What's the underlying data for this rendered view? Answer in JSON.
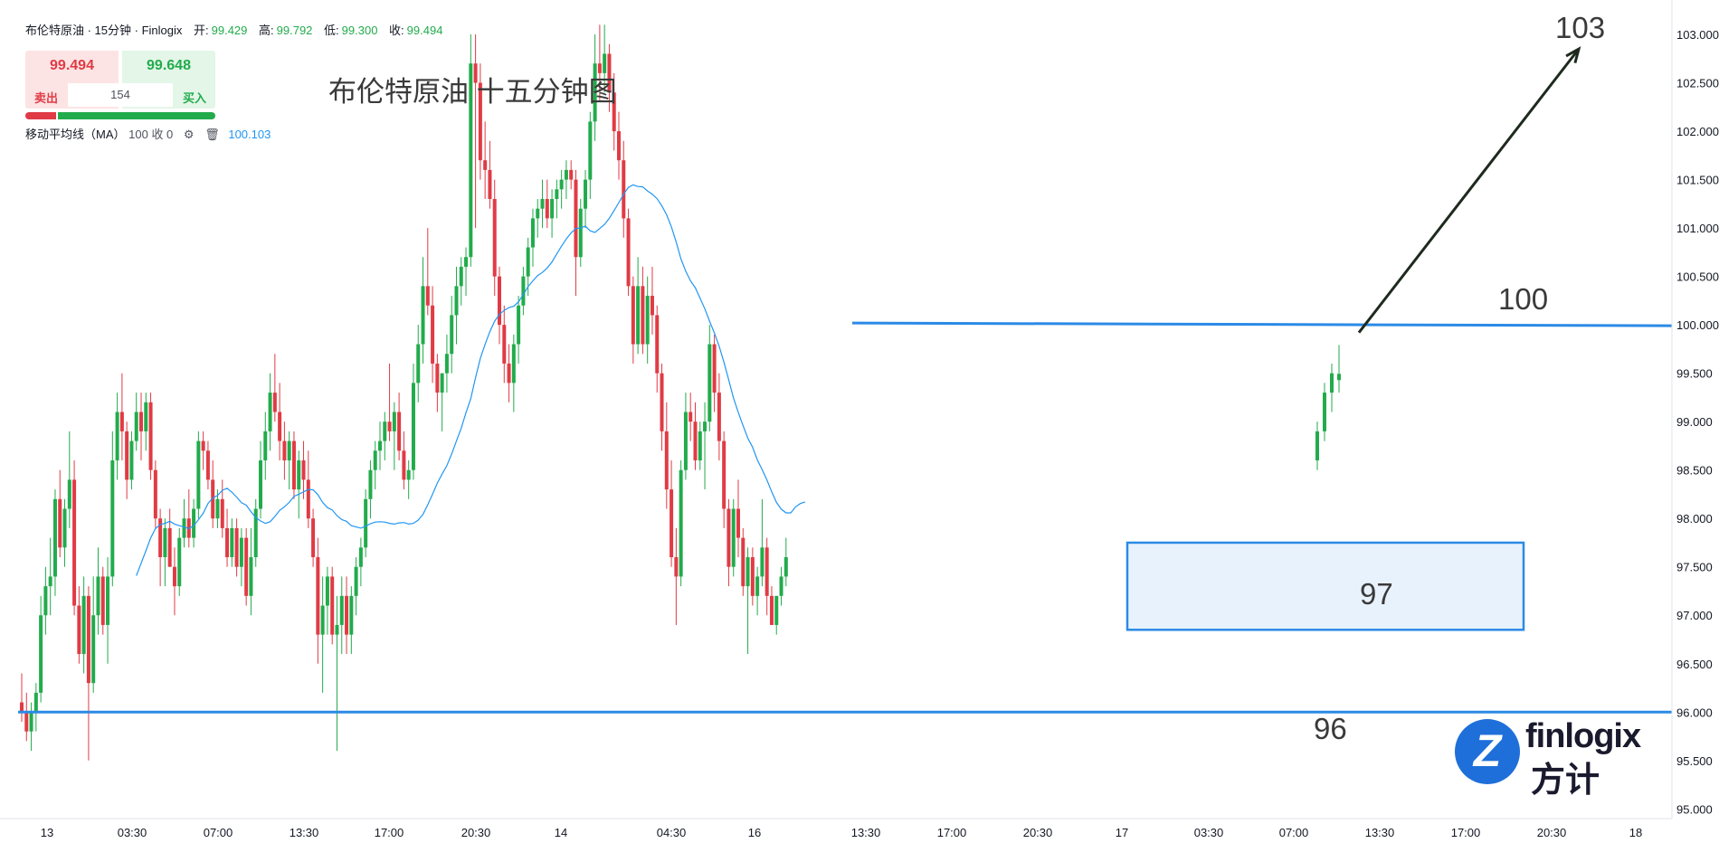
{
  "header": {
    "symbol_line": "布伦特原油 · 15分钟 · Finlogix",
    "open_label": "开:",
    "open_value": "99.429",
    "high_label": "高:",
    "high_value": "99.792",
    "low_label": "低:",
    "low_value": "99.300",
    "close_label": "收:",
    "close_value": "99.494"
  },
  "trade_panel": {
    "sell_price": "99.494",
    "buy_price": "99.648",
    "spread": "154",
    "sell_label": "卖出",
    "buy_label": "买入"
  },
  "indicator": {
    "label": "移动平均线（MA）",
    "params": "100 收 0",
    "value": "100.103",
    "settings_icon": "gear-icon",
    "delete_icon": "trash-icon"
  },
  "overlay_title": "布伦特原油 十五分钟图",
  "annotations": {
    "target_up": "103",
    "resistance": "100",
    "support_zone": "97",
    "support_low": "96"
  },
  "colors": {
    "up": "#22ab4c",
    "down": "#e03b45",
    "ma_line": "#2196f3",
    "level_line": "#2b8ae6",
    "zone_fill": "#e8f2fc",
    "zone_border": "#2b8ae6",
    "arrow": "#1e2a1e"
  },
  "logo": {
    "name_en": "finlogix",
    "name_cn": "方计",
    "icon": "finlogix-z-logo-icon"
  },
  "chart_data": {
    "type": "candlestick",
    "title": "布伦特原油 十五分钟图",
    "ylim": [
      94.9,
      103.15
    ],
    "y_ticks": [
      "103.000",
      "102.500",
      "102.000",
      "101.500",
      "101.000",
      "100.500",
      "100.000",
      "99.500",
      "99.000",
      "98.500",
      "98.000",
      "97.500",
      "97.000",
      "96.500",
      "96.000",
      "95.500",
      "95.000"
    ],
    "x_ticks": [
      "13",
      "03:30",
      "07:00",
      "13:30",
      "17:00",
      "20:30",
      "14",
      "04:30",
      "16",
      "13:30",
      "17:00",
      "20:30",
      "17",
      "03:30",
      "07:00",
      "13:30",
      "17:00",
      "20:30",
      "18"
    ],
    "horizontal_levels": [
      {
        "name": "resistance",
        "price": 100.0,
        "label": "100"
      },
      {
        "name": "support",
        "price": 96.0,
        "label": "96"
      }
    ],
    "support_zone": {
      "low": 96.85,
      "high": 97.75,
      "label": "97"
    },
    "target_arrow": {
      "from_price": 99.92,
      "to_price": 102.85,
      "label": "103"
    },
    "moving_average": {
      "period": 100,
      "last_value": 100.103
    },
    "ohlc_last": {
      "open": 99.429,
      "high": 99.792,
      "low": 99.3,
      "close": 99.494
    },
    "series": [
      {
        "name": "candles",
        "points": [
          [
            96.1,
            96.4,
            95.9,
            96.0
          ],
          [
            96.0,
            96.2,
            95.7,
            95.8
          ],
          [
            95.8,
            96.1,
            95.6,
            96.0
          ],
          [
            96.0,
            96.3,
            95.8,
            96.2
          ],
          [
            96.2,
            97.2,
            96.1,
            97.0
          ],
          [
            97.0,
            97.5,
            96.8,
            97.3
          ],
          [
            97.3,
            97.8,
            97.0,
            97.4
          ],
          [
            97.4,
            98.3,
            97.2,
            98.2
          ],
          [
            98.2,
            98.5,
            97.6,
            97.7
          ],
          [
            97.7,
            98.2,
            97.5,
            98.1
          ],
          [
            98.1,
            98.9,
            97.9,
            98.4
          ],
          [
            98.4,
            98.6,
            97.0,
            97.1
          ],
          [
            97.1,
            97.3,
            96.5,
            96.6
          ],
          [
            96.6,
            97.4,
            96.4,
            97.2
          ],
          [
            97.2,
            97.3,
            95.5,
            96.3
          ],
          [
            96.3,
            97.4,
            96.2,
            97.0
          ],
          [
            97.0,
            97.7,
            96.8,
            97.4
          ],
          [
            97.4,
            97.5,
            96.8,
            96.9
          ],
          [
            96.9,
            97.6,
            96.5,
            97.4
          ],
          [
            97.4,
            98.9,
            97.3,
            98.6
          ],
          [
            98.6,
            99.3,
            98.4,
            99.1
          ],
          [
            99.1,
            99.5,
            98.6,
            98.9
          ],
          [
            98.9,
            99.0,
            98.2,
            98.4
          ],
          [
            98.4,
            98.9,
            98.3,
            98.8
          ],
          [
            98.8,
            99.3,
            98.7,
            99.1
          ],
          [
            99.1,
            99.3,
            98.6,
            98.9
          ],
          [
            98.9,
            99.3,
            98.7,
            99.2
          ],
          [
            99.2,
            99.3,
            98.4,
            98.5
          ],
          [
            98.5,
            98.6,
            97.9,
            98.0
          ],
          [
            98.0,
            98.1,
            97.3,
            97.6
          ],
          [
            97.6,
            98.0,
            97.3,
            97.9
          ],
          [
            97.9,
            98.1,
            97.5,
            97.5
          ],
          [
            97.5,
            97.7,
            97.0,
            97.3
          ],
          [
            97.3,
            97.9,
            97.2,
            97.8
          ],
          [
            97.8,
            98.2,
            97.7,
            98.0
          ],
          [
            98.0,
            98.3,
            97.7,
            97.8
          ],
          [
            97.8,
            98.2,
            97.7,
            98.1
          ],
          [
            98.1,
            98.9,
            98.0,
            98.8
          ],
          [
            98.8,
            98.9,
            98.5,
            98.7
          ],
          [
            98.7,
            98.8,
            98.3,
            98.4
          ],
          [
            98.4,
            98.6,
            97.9,
            98.0
          ],
          [
            98.0,
            98.3,
            97.9,
            98.2
          ],
          [
            98.2,
            98.4,
            97.8,
            97.9
          ],
          [
            97.9,
            98.1,
            97.5,
            97.6
          ],
          [
            97.6,
            98.0,
            97.5,
            97.9
          ],
          [
            97.9,
            98.0,
            97.4,
            97.5
          ],
          [
            97.5,
            97.9,
            97.3,
            97.8
          ],
          [
            97.8,
            97.9,
            97.1,
            97.2
          ],
          [
            97.2,
            97.9,
            97.0,
            97.6
          ],
          [
            97.6,
            98.2,
            97.5,
            98.1
          ],
          [
            98.1,
            98.8,
            98.0,
            98.6
          ],
          [
            98.6,
            99.1,
            98.4,
            98.9
          ],
          [
            98.9,
            99.5,
            98.7,
            99.3
          ],
          [
            99.3,
            99.7,
            99.0,
            99.1
          ],
          [
            99.1,
            99.4,
            98.6,
            98.8
          ],
          [
            98.8,
            99.0,
            98.4,
            98.6
          ],
          [
            98.6,
            98.9,
            98.3,
            98.8
          ],
          [
            98.8,
            98.9,
            98.2,
            98.3
          ],
          [
            98.3,
            98.7,
            98.0,
            98.6
          ],
          [
            98.6,
            98.8,
            98.2,
            98.4
          ],
          [
            98.4,
            98.7,
            97.9,
            98.0
          ],
          [
            98.0,
            98.1,
            97.5,
            97.6
          ],
          [
            97.6,
            97.8,
            96.5,
            96.8
          ],
          [
            96.8,
            97.4,
            96.2,
            97.1
          ],
          [
            97.1,
            97.5,
            96.8,
            97.4
          ],
          [
            97.4,
            97.5,
            96.7,
            96.8
          ],
          [
            96.8,
            97.2,
            95.6,
            96.9
          ],
          [
            96.9,
            97.4,
            96.6,
            97.2
          ],
          [
            97.2,
            97.4,
            96.6,
            96.8
          ],
          [
            96.8,
            97.3,
            96.6,
            97.2
          ],
          [
            97.2,
            97.6,
            97.0,
            97.5
          ],
          [
            97.5,
            97.8,
            97.3,
            97.7
          ],
          [
            97.7,
            98.3,
            97.6,
            98.2
          ],
          [
            98.2,
            98.6,
            98.0,
            98.5
          ],
          [
            98.5,
            98.8,
            98.3,
            98.7
          ],
          [
            98.7,
            99.0,
            98.5,
            98.8
          ],
          [
            98.8,
            99.1,
            98.6,
            99.0
          ],
          [
            99.0,
            99.6,
            98.8,
            98.9
          ],
          [
            98.9,
            99.2,
            98.5,
            99.1
          ],
          [
            99.1,
            99.3,
            98.6,
            98.7
          ],
          [
            98.7,
            98.9,
            98.3,
            98.4
          ],
          [
            98.4,
            98.6,
            98.2,
            98.5
          ],
          [
            98.5,
            99.6,
            98.4,
            99.4
          ],
          [
            99.4,
            100.0,
            99.2,
            99.8
          ],
          [
            99.8,
            100.7,
            99.6,
            100.4
          ],
          [
            100.4,
            101.0,
            100.1,
            100.2
          ],
          [
            100.2,
            100.4,
            99.4,
            99.6
          ],
          [
            99.6,
            99.7,
            99.1,
            99.3
          ],
          [
            99.3,
            99.5,
            98.9,
            99.5
          ],
          [
            99.5,
            99.9,
            99.3,
            99.7
          ],
          [
            99.7,
            100.3,
            99.5,
            100.1
          ],
          [
            100.1,
            100.6,
            99.8,
            100.4
          ],
          [
            100.4,
            100.7,
            100.2,
            100.6
          ],
          [
            100.6,
            100.8,
            100.3,
            100.7
          ],
          [
            100.7,
            103.0,
            100.6,
            102.7
          ],
          [
            102.7,
            103.0,
            101.0,
            102.5
          ],
          [
            102.5,
            102.7,
            101.5,
            101.7
          ],
          [
            101.7,
            102.1,
            101.3,
            101.6
          ],
          [
            101.6,
            101.9,
            101.2,
            101.3
          ],
          [
            101.3,
            101.5,
            100.3,
            100.5
          ],
          [
            100.5,
            100.6,
            99.8,
            100.0
          ],
          [
            100.0,
            100.2,
            99.4,
            99.6
          ],
          [
            99.6,
            99.8,
            99.2,
            99.4
          ],
          [
            99.4,
            99.9,
            99.1,
            99.8
          ],
          [
            99.8,
            100.3,
            99.6,
            100.2
          ],
          [
            100.2,
            100.6,
            100.1,
            100.5
          ],
          [
            100.5,
            100.9,
            100.3,
            100.8
          ],
          [
            100.8,
            101.2,
            100.6,
            101.1
          ],
          [
            101.1,
            101.3,
            100.9,
            101.2
          ],
          [
            101.2,
            101.5,
            101.0,
            101.3
          ],
          [
            101.3,
            101.5,
            101.0,
            101.1
          ],
          [
            101.1,
            101.4,
            100.9,
            101.3
          ],
          [
            101.3,
            101.5,
            101.1,
            101.4
          ],
          [
            101.4,
            101.6,
            101.2,
            101.5
          ],
          [
            101.5,
            101.7,
            101.3,
            101.6
          ],
          [
            101.6,
            101.7,
            101.4,
            101.5
          ],
          [
            101.5,
            101.6,
            100.3,
            100.7
          ],
          [
            100.7,
            101.3,
            100.6,
            101.2
          ],
          [
            101.2,
            101.6,
            101.0,
            101.5
          ],
          [
            101.5,
            102.2,
            101.3,
            102.1
          ],
          [
            102.1,
            103.0,
            101.9,
            102.7
          ],
          [
            102.7,
            103.1,
            102.3,
            102.6
          ],
          [
            102.6,
            103.1,
            102.4,
            102.8
          ],
          [
            102.8,
            102.9,
            102.2,
            102.4
          ],
          [
            102.4,
            102.6,
            101.8,
            102.0
          ],
          [
            102.0,
            102.2,
            101.5,
            101.7
          ],
          [
            101.7,
            101.9,
            100.9,
            101.1
          ],
          [
            101.1,
            101.2,
            100.3,
            100.4
          ],
          [
            100.4,
            100.5,
            99.6,
            99.8
          ],
          [
            99.8,
            100.7,
            99.7,
            100.4
          ],
          [
            100.4,
            100.6,
            99.7,
            99.8
          ],
          [
            99.8,
            100.5,
            99.6,
            100.3
          ],
          [
            100.3,
            100.6,
            99.9,
            100.1
          ],
          [
            100.1,
            100.2,
            99.3,
            99.5
          ],
          [
            99.5,
            99.6,
            98.7,
            98.9
          ],
          [
            98.9,
            99.2,
            98.1,
            98.3
          ],
          [
            98.3,
            98.6,
            97.5,
            97.6
          ],
          [
            97.6,
            97.9,
            96.9,
            97.4
          ],
          [
            97.4,
            98.6,
            97.3,
            98.5
          ],
          [
            98.5,
            99.3,
            98.4,
            99.1
          ],
          [
            99.1,
            99.3,
            98.8,
            99.0
          ],
          [
            99.0,
            99.2,
            98.5,
            98.6
          ],
          [
            98.6,
            99.0,
            98.5,
            98.9
          ],
          [
            98.9,
            99.2,
            98.3,
            99.0
          ],
          [
            99.0,
            100.0,
            98.9,
            99.8
          ],
          [
            99.8,
            99.9,
            99.1,
            99.3
          ],
          [
            99.3,
            99.5,
            98.6,
            98.8
          ],
          [
            98.8,
            98.9,
            97.9,
            98.1
          ],
          [
            98.1,
            98.2,
            97.3,
            97.5
          ],
          [
            97.5,
            98.2,
            97.4,
            98.1
          ],
          [
            98.1,
            98.4,
            97.6,
            97.8
          ],
          [
            97.8,
            97.9,
            97.2,
            97.3
          ],
          [
            97.3,
            97.7,
            96.6,
            97.6
          ],
          [
            97.6,
            97.7,
            97.1,
            97.2
          ],
          [
            97.2,
            97.5,
            97.0,
            97.4
          ],
          [
            97.4,
            98.2,
            97.3,
            97.7
          ],
          [
            97.7,
            97.8,
            97.0,
            97.2
          ],
          [
            97.2,
            97.3,
            96.9,
            96.9
          ],
          [
            96.9,
            97.2,
            96.8,
            97.2
          ],
          [
            97.2,
            97.5,
            97.1,
            97.4
          ],
          [
            97.4,
            97.8,
            97.3,
            97.6
          ],
          [
            98.6,
            99.0,
            98.5,
            98.9
          ],
          [
            98.9,
            99.4,
            98.8,
            99.3
          ],
          [
            99.3,
            99.6,
            99.1,
            99.5
          ],
          [
            99.429,
            99.792,
            99.3,
            99.494
          ]
        ]
      }
    ]
  }
}
